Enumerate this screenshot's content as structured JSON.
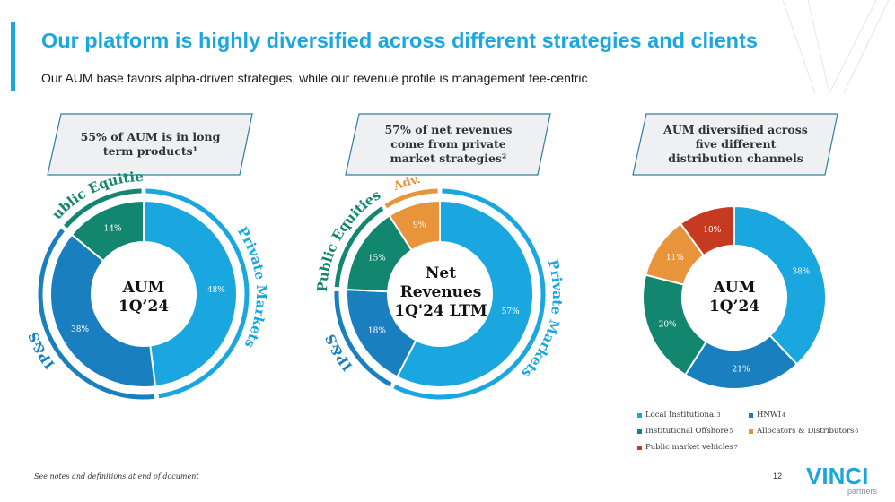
{
  "header": {
    "title": "Our platform is highly diversified across different strategies and clients",
    "subtitle": "Our AUM base favors alpha-driven strategies, while our revenue profile is management fee-centric"
  },
  "callouts": [
    {
      "line1": "55% of AUM is in long",
      "line2": "term products¹",
      "line3": ""
    },
    {
      "line1": "57% of net revenues",
      "line2": "come from private",
      "line3": "market strategies²"
    },
    {
      "line1": "AUM diversified across",
      "line2": "five different",
      "line3": "distribution channels"
    }
  ],
  "chart_data": [
    {
      "type": "pie",
      "title": "AUM 1Q'24",
      "center_line1": "AUM",
      "center_line2": "1Q’24",
      "slices": [
        {
          "label": "Private Markets",
          "value": 48,
          "text": "48%",
          "color": "#1aa7e0"
        },
        {
          "label": "IP&S",
          "value": 38,
          "text": "38%",
          "color": "#1a7fbf"
        },
        {
          "label": "Public Equities",
          "value": 14,
          "text": "14%",
          "color": "#12866f"
        }
      ],
      "arc_labels": [
        "Private Markets",
        "IP&S",
        "Public Equities"
      ]
    },
    {
      "type": "pie",
      "title": "Net Revenues 1Q'24 LTM",
      "center_line1": "Net",
      "center_line2": "Revenues",
      "center_line3": "1Q'24 LTM",
      "slices": [
        {
          "label": "Private Markets",
          "value": 57,
          "text": "57%",
          "color": "#1aa7e0"
        },
        {
          "label": "IP&S",
          "value": 18,
          "text": "18%",
          "color": "#1a7fbf"
        },
        {
          "label": "Public Equities",
          "value": 15,
          "text": "15%",
          "color": "#12866f"
        },
        {
          "label": "Adv.",
          "value": 9,
          "text": "9%",
          "color": "#e8943a"
        }
      ],
      "arc_labels": [
        "Private Markets",
        "IP&S",
        "Public Equities",
        "Adv."
      ]
    },
    {
      "type": "pie",
      "title": "AUM 1Q'24",
      "center_line1": "AUM",
      "center_line2": "1Q’24",
      "slices": [
        {
          "label": "Local Institutional",
          "value": 38,
          "text": "38%",
          "color": "#1aa7e0"
        },
        {
          "label": "HNWI",
          "value": 21,
          "text": "21%",
          "color": "#1a7fbf"
        },
        {
          "label": "Institutional Offshore",
          "value": 20,
          "text": "20%",
          "color": "#12866f"
        },
        {
          "label": "Allocators & Distributors",
          "value": 11,
          "text": "11%",
          "color": "#e8943a"
        },
        {
          "label": "Public market vehicles",
          "value": 10,
          "text": "10%",
          "color": "#c73a22"
        }
      ]
    }
  ],
  "legend": [
    {
      "label": "Local Institutional",
      "sup": "3",
      "color": "#1aa7e0"
    },
    {
      "label": "HNWI",
      "sup": "4",
      "color": "#1a7fbf"
    },
    {
      "label": "Institutional Offshore",
      "sup": "5",
      "color": "#12866f"
    },
    {
      "label": "Allocators & Distributors",
      "sup": "6",
      "color": "#e8943a"
    },
    {
      "label": "Public market vehicles",
      "sup": "7",
      "color": "#c73a22"
    }
  ],
  "footer": {
    "note": "See notes and definitions at end of document",
    "page": "12",
    "logo": "VINCI",
    "logo_sub": "partners"
  }
}
